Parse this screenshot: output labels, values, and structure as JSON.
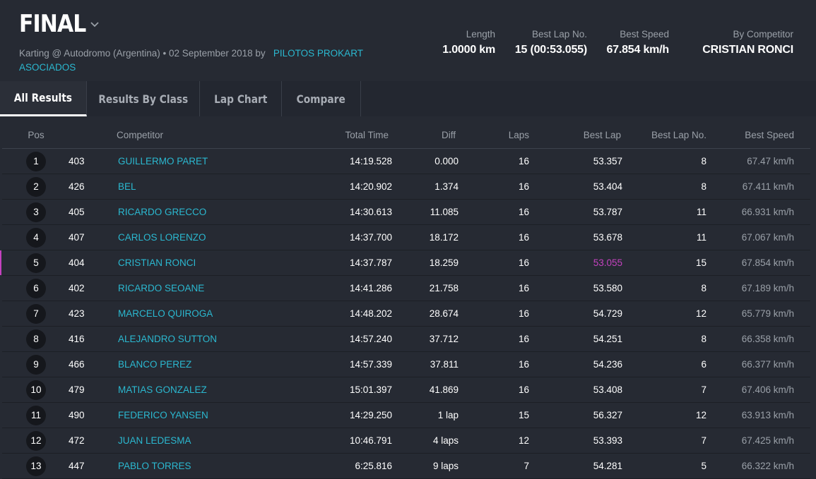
{
  "header": {
    "title": "FINAL",
    "subtitle_prefix": "Karting @ Autodromo (Argentina) • 02 September 2018 by",
    "organizer": "PILOTOS PROKART ASOCIADOS"
  },
  "stats": [
    {
      "label": "Length",
      "value": "1.0000 km"
    },
    {
      "label": "Best Lap No.",
      "value": "15 (00:53.055)"
    },
    {
      "label": "Best Speed",
      "value": "67.854 km/h"
    },
    {
      "label": "By Competitor",
      "value": "CRISTIAN RONCI"
    }
  ],
  "tabs": [
    {
      "label": "All Results",
      "active": true
    },
    {
      "label": "Results By Class",
      "active": false
    },
    {
      "label": "Lap Chart",
      "active": false
    },
    {
      "label": "Compare",
      "active": false
    }
  ],
  "columns": {
    "pos": "Pos",
    "competitor": "Competitor",
    "total_time": "Total Time",
    "diff": "Diff",
    "laps": "Laps",
    "best_lap": "Best Lap",
    "best_lap_no": "Best Lap No.",
    "best_speed": "Best Speed"
  },
  "rows": [
    {
      "pos": "1",
      "num": "403",
      "name": "GUILLERMO PARET",
      "total": "14:19.528",
      "diff": "0.000",
      "laps": "16",
      "best": "53.357",
      "bestno": "8",
      "speed": "67.47 km/h"
    },
    {
      "pos": "2",
      "num": "426",
      "name": "BEL",
      "total": "14:20.902",
      "diff": "1.374",
      "laps": "16",
      "best": "53.404",
      "bestno": "8",
      "speed": "67.411 km/h"
    },
    {
      "pos": "3",
      "num": "405",
      "name": "RICARDO GRECCO",
      "total": "14:30.613",
      "diff": "11.085",
      "laps": "16",
      "best": "53.787",
      "bestno": "11",
      "speed": "66.931 km/h"
    },
    {
      "pos": "4",
      "num": "407",
      "name": "CARLOS LORENZO",
      "total": "14:37.700",
      "diff": "18.172",
      "laps": "16",
      "best": "53.678",
      "bestno": "11",
      "speed": "67.067 km/h"
    },
    {
      "pos": "5",
      "num": "404",
      "name": "CRISTIAN RONCI",
      "total": "14:37.787",
      "diff": "18.259",
      "laps": "16",
      "best": "53.055",
      "bestno": "15",
      "speed": "67.854 km/h",
      "fastest": true
    },
    {
      "pos": "6",
      "num": "402",
      "name": "RICARDO SEOANE",
      "total": "14:41.286",
      "diff": "21.758",
      "laps": "16",
      "best": "53.580",
      "bestno": "8",
      "speed": "67.189 km/h"
    },
    {
      "pos": "7",
      "num": "423",
      "name": "MARCELO QUIROGA",
      "total": "14:48.202",
      "diff": "28.674",
      "laps": "16",
      "best": "54.729",
      "bestno": "12",
      "speed": "65.779 km/h"
    },
    {
      "pos": "8",
      "num": "416",
      "name": "ALEJANDRO SUTTON",
      "total": "14:57.240",
      "diff": "37.712",
      "laps": "16",
      "best": "54.251",
      "bestno": "8",
      "speed": "66.358 km/h"
    },
    {
      "pos": "9",
      "num": "466",
      "name": "BLANCO PEREZ",
      "total": "14:57.339",
      "diff": "37.811",
      "laps": "16",
      "best": "54.236",
      "bestno": "6",
      "speed": "66.377 km/h"
    },
    {
      "pos": "10",
      "num": "479",
      "name": "MATIAS GONZALEZ",
      "total": "15:01.397",
      "diff": "41.869",
      "laps": "16",
      "best": "53.408",
      "bestno": "7",
      "speed": "67.406 km/h"
    },
    {
      "pos": "11",
      "num": "490",
      "name": "FEDERICO YANSEN",
      "total": "14:29.250",
      "diff": "1 lap",
      "laps": "15",
      "best": "56.327",
      "bestno": "12",
      "speed": "63.913 km/h"
    },
    {
      "pos": "12",
      "num": "472",
      "name": "JUAN LEDESMA",
      "total": "10:46.791",
      "diff": "4 laps",
      "laps": "12",
      "best": "53.393",
      "bestno": "7",
      "speed": "67.425 km/h"
    },
    {
      "pos": "13",
      "num": "447",
      "name": "PABLO TORRES",
      "total": "6:25.816",
      "diff": "9 laps",
      "laps": "7",
      "best": "54.281",
      "bestno": "5",
      "speed": "66.322 km/h"
    }
  ],
  "colors": {
    "accent": "#2bb8d0",
    "fastest_lap": "#c542c0",
    "background": "#262a33"
  }
}
